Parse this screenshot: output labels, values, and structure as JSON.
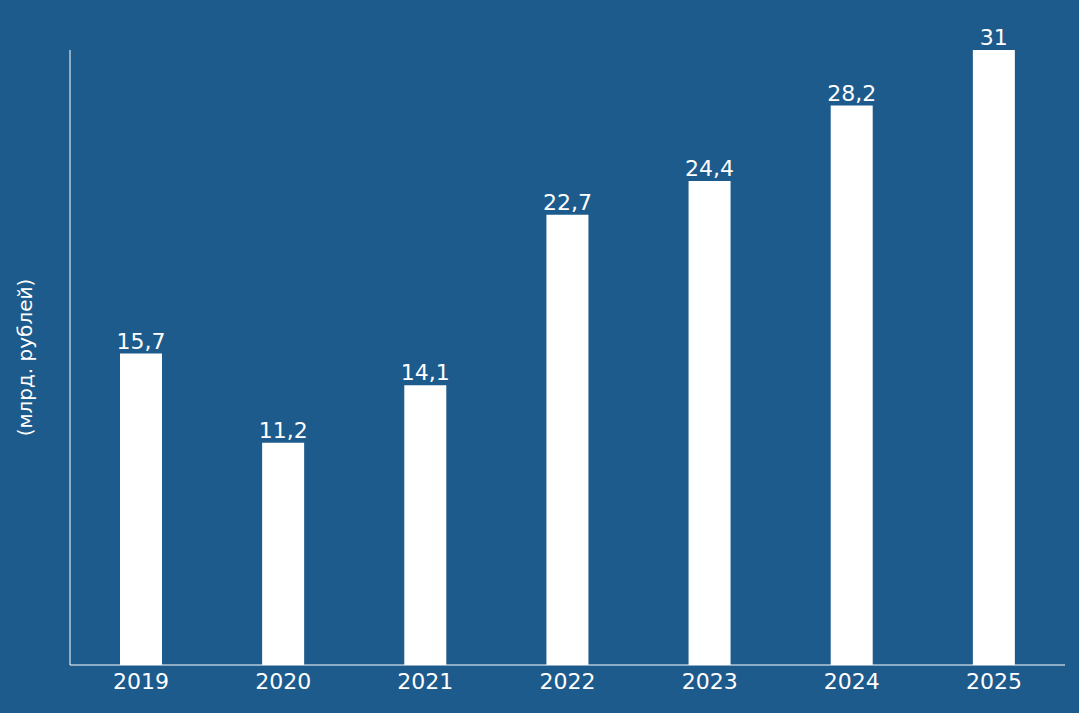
{
  "chart_data": {
    "type": "bar",
    "y_label": "(млрд. рублей)",
    "categories": [
      "2019",
      "2020",
      "2021",
      "2022",
      "2023",
      "2024",
      "2025"
    ],
    "values": [
      15.7,
      11.2,
      14.1,
      22.7,
      24.4,
      28.2,
      31
    ],
    "value_labels": [
      "15,7",
      "11,2",
      "14,1",
      "22,7",
      "24,4",
      "28,2",
      "31"
    ],
    "color": "#ffffff",
    "ylim": [
      0,
      31
    ],
    "data_labels": true,
    "tick_labels": "x",
    "grid": false
  }
}
